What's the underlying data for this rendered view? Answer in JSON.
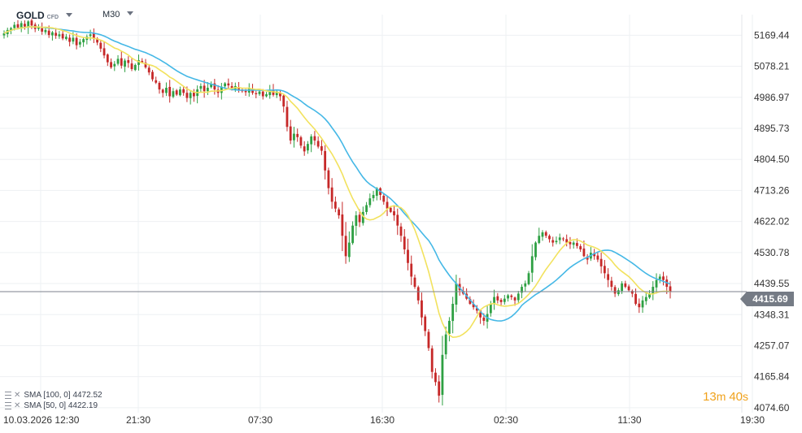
{
  "header": {
    "symbol": "GOLD",
    "instrument_type": "CFD",
    "timeframe": "M30"
  },
  "legend": [
    {
      "label": "SMA [100, 0]",
      "value": "4472.52",
      "color": "#45b8e6"
    },
    {
      "label": "SMA [50, 0]",
      "value": "4422.19",
      "color": "#f2e25e"
    }
  ],
  "countdown": {
    "minutes": "13",
    "minutes_unit": "m",
    "seconds": "40",
    "seconds_unit": "s"
  },
  "current_price": "4415.69",
  "colors": {
    "up": "#2ea043",
    "down": "#c62828",
    "sma100": "#45b8e6",
    "sma50": "#f2e25e",
    "grid": "#eef0f3",
    "axis_text": "#333333",
    "price_line": "#7c828c"
  },
  "chart_data": {
    "type": "candlestick",
    "x_tick_labels": [
      "10.03.2026 12:30",
      "21:30",
      "07:30",
      "16:30",
      "02:30",
      "11:30",
      "19:30"
    ],
    "y_tick_labels": [
      "5169.44",
      "5078.21",
      "4986.97",
      "4895.73",
      "4804.50",
      "4713.26",
      "4622.02",
      "4530.78",
      "4439.55",
      "4348.31",
      "4257.07",
      "4165.84",
      "4074.60"
    ],
    "ylim": [
      4060,
      5230
    ],
    "series": [
      {
        "name": "SMA [100, 0]",
        "value": "4472.52"
      },
      {
        "name": "SMA [50, 0]",
        "value": "4422.19"
      }
    ],
    "closes": [
      5175,
      5185,
      5190,
      5200,
      5192,
      5205,
      5195,
      5210,
      5198,
      5188,
      5192,
      5180,
      5185,
      5170,
      5178,
      5168,
      5172,
      5160,
      5165,
      5150,
      5162,
      5140,
      5150,
      5158,
      5165,
      5172,
      5160,
      5148,
      5130,
      5110,
      5090,
      5075,
      5085,
      5100,
      5080,
      5095,
      5088,
      5070,
      5082,
      5096,
      5090,
      5075,
      5060,
      5040,
      5030,
      5010,
      5000,
      5015,
      4990,
      5005,
      4995,
      5010,
      5000,
      4985,
      5000,
      4990,
      5010,
      5020,
      5005,
      5015,
      5025,
      5010,
      5000,
      5018,
      5028,
      5022,
      5012,
      5020,
      5010,
      5005,
      5002,
      5012,
      5000,
      4996,
      5004,
      4990,
      4996,
      5008,
      4994,
      5004,
      4990,
      4960,
      4900,
      4860,
      4880,
      4870,
      4845,
      4828,
      4850,
      4872,
      4860,
      4842,
      4830,
      4772,
      4720,
      4680,
      4660,
      4640,
      4580,
      4520,
      4560,
      4610,
      4640,
      4620,
      4650,
      4670,
      4690,
      4700,
      4720,
      4700,
      4680,
      4660,
      4650,
      4640,
      4610,
      4580,
      4540,
      4500,
      4460,
      4430,
      4390,
      4340,
      4300,
      4250,
      4180,
      4150,
      4110,
      4230,
      4290,
      4330,
      4380,
      4440,
      4420,
      4410,
      4395,
      4380,
      4370,
      4360,
      4340,
      4330,
      4350,
      4380,
      4400,
      4390,
      4385,
      4395,
      4405,
      4400,
      4390,
      4410,
      4430,
      4440,
      4470,
      4520,
      4560,
      4580,
      4590,
      4580,
      4570,
      4560,
      4565,
      4575,
      4570,
      4560,
      4555,
      4560,
      4550,
      4540,
      4520,
      4510,
      4530,
      4520,
      4510,
      4490,
      4470,
      4450,
      4430,
      4410,
      4420,
      4440,
      4430,
      4420,
      4410,
      4380,
      4370,
      4390,
      4400,
      4410,
      4430,
      4450,
      4460,
      4450,
      4430,
      4415.69
    ]
  }
}
